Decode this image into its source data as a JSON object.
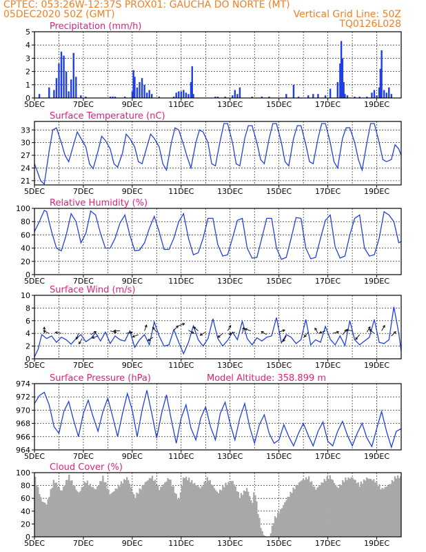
{
  "header": {
    "line1_left": "CPTEC:   053:26W-12:37S   PROX01: GAUCHA DO NORTE (MT)",
    "line2_left": "05DEC2020 50Z (GMT)",
    "line2_right": "Vertical Grid Line: 50Z",
    "line3_right": "TQ0126L028"
  },
  "colors": {
    "header": "#f08020",
    "title": "#e0207a",
    "series": "#1f3fe0",
    "cloud": "#a8a8a8",
    "grid": "#000000"
  },
  "x_axis": {
    "tick_labels": [
      "5DEC",
      "7DEC",
      "9DEC",
      "11DEC",
      "13DEC",
      "15DEC",
      "17DEC",
      "19DEC"
    ],
    "tick_days": [
      5,
      7,
      9,
      11,
      13,
      15,
      17,
      19
    ],
    "range_days": [
      5,
      20
    ]
  },
  "chart_data": [
    {
      "id": "precip",
      "type": "bar",
      "title": "Precipitation (mm/h)",
      "ylim": [
        0,
        5
      ],
      "yticks": [
        0,
        1,
        2,
        3,
        4,
        5
      ],
      "x": [
        5.2,
        5.6,
        5.8,
        5.9,
        6.0,
        6.1,
        6.2,
        6.3,
        6.4,
        6.5,
        6.6,
        6.7,
        6.9,
        7.1,
        8.1,
        8.2,
        8.3,
        8.7,
        9.0,
        9.05,
        9.1,
        9.2,
        9.3,
        9.4,
        9.5,
        9.6,
        9.7,
        9.8,
        10.1,
        10.7,
        10.8,
        10.9,
        11.0,
        11.1,
        11.2,
        11.3,
        11.4,
        11.45,
        11.5,
        12.4,
        12.5,
        12.8,
        13.1,
        13.2,
        13.3,
        13.4,
        13.9,
        14.3,
        14.6,
        15.3,
        15.6,
        15.8,
        16.2,
        16.4,
        16.6,
        16.9,
        17.1,
        17.4,
        17.5,
        17.55,
        17.6,
        17.65,
        17.7,
        17.8,
        18.1,
        18.3,
        18.6,
        18.8,
        18.9,
        19.0,
        19.1,
        19.15,
        19.2,
        19.3,
        19.4,
        19.5,
        19.6
      ],
      "values": [
        0.3,
        0.8,
        0.6,
        1.5,
        2.6,
        3.5,
        3.2,
        2.0,
        0.5,
        1.4,
        3.4,
        1.6,
        0.2,
        0.1,
        0.1,
        0.1,
        0.1,
        0.1,
        0.5,
        2.1,
        1.6,
        0.8,
        1.2,
        1.5,
        1.0,
        0.4,
        0.6,
        0.3,
        0.1,
        0.1,
        0.4,
        0.5,
        0.5,
        0.6,
        0.4,
        0.3,
        1.2,
        2.4,
        0.3,
        0.1,
        0.1,
        0.1,
        0.2,
        0.6,
        0.3,
        0.8,
        0.1,
        0.1,
        0.1,
        0.3,
        1.0,
        0.1,
        0.2,
        0.3,
        0.3,
        0.2,
        0.7,
        1.2,
        2.6,
        4.3,
        3.0,
        1.2,
        0.3,
        0.2,
        0.1,
        0.1,
        0.1,
        0.4,
        0.6,
        0.2,
        0.8,
        2.2,
        3.6,
        0.6,
        0.4,
        0.8,
        0.3
      ]
    },
    {
      "id": "temp",
      "type": "line",
      "title": "Surface Temperature (nC)",
      "ylim": [
        20,
        35
      ],
      "yticks": [
        21,
        24,
        27,
        30,
        33
      ],
      "x": [
        5.0,
        5.1,
        5.25,
        5.4,
        5.6,
        5.75,
        5.9,
        6.1,
        6.25,
        6.4,
        6.6,
        6.75,
        6.9,
        7.1,
        7.25,
        7.4,
        7.6,
        7.75,
        7.9,
        8.1,
        8.25,
        8.4,
        8.6,
        8.75,
        8.9,
        9.1,
        9.25,
        9.4,
        9.6,
        9.75,
        9.9,
        10.1,
        10.25,
        10.4,
        10.6,
        10.75,
        10.9,
        11.1,
        11.25,
        11.4,
        11.6,
        11.75,
        11.9,
        12.1,
        12.25,
        12.4,
        12.6,
        12.75,
        12.9,
        13.1,
        13.25,
        13.4,
        13.6,
        13.75,
        13.9,
        14.1,
        14.25,
        14.4,
        14.6,
        14.75,
        14.9,
        15.1,
        15.25,
        15.4,
        15.6,
        15.75,
        15.9,
        16.1,
        16.25,
        16.4,
        16.6,
        16.75,
        16.9,
        17.1,
        17.25,
        17.4,
        17.6,
        17.75,
        17.9,
        18.1,
        18.25,
        18.4,
        18.6,
        18.75,
        18.9,
        19.1,
        19.25,
        19.4,
        19.6,
        19.75,
        19.9,
        20.0
      ],
      "values": [
        25.0,
        23.5,
        21.0,
        20.2,
        28.0,
        33.0,
        33.5,
        30.0,
        27.0,
        25.5,
        29.5,
        32.5,
        31.0,
        29.0,
        25.0,
        23.8,
        28.0,
        31.5,
        30.5,
        28.5,
        25.0,
        24.2,
        27.5,
        32.0,
        31.0,
        29.0,
        25.5,
        25.0,
        29.0,
        32.0,
        31.0,
        29.0,
        25.0,
        23.5,
        30.0,
        33.5,
        33.0,
        29.5,
        26.5,
        24.0,
        30.0,
        33.0,
        32.5,
        30.0,
        25.0,
        24.5,
        30.5,
        34.5,
        34.5,
        30.0,
        25.0,
        24.5,
        31.0,
        34.0,
        34.0,
        30.0,
        26.0,
        25.0,
        31.0,
        34.5,
        34.5,
        30.0,
        25.5,
        24.5,
        31.0,
        34.0,
        34.0,
        29.5,
        25.5,
        25.0,
        31.0,
        34.5,
        34.5,
        30.0,
        25.5,
        24.0,
        31.0,
        33.5,
        33.5,
        30.0,
        26.0,
        23.5,
        30.0,
        34.5,
        34.5,
        30.0,
        26.0,
        25.5,
        26.0,
        29.5,
        28.5,
        27.0
      ]
    },
    {
      "id": "rh",
      "type": "line",
      "title": "Relative Humidity (%)",
      "ylim": [
        0,
        100
      ],
      "yticks": [
        0,
        20,
        40,
        60,
        80,
        100
      ],
      "x": [
        5.0,
        5.2,
        5.4,
        5.5,
        5.7,
        5.9,
        6.1,
        6.3,
        6.5,
        6.7,
        6.9,
        7.1,
        7.3,
        7.5,
        7.7,
        7.9,
        8.1,
        8.3,
        8.5,
        8.7,
        8.9,
        9.1,
        9.3,
        9.5,
        9.7,
        9.9,
        10.1,
        10.3,
        10.5,
        10.7,
        10.9,
        11.1,
        11.3,
        11.5,
        11.7,
        11.9,
        12.1,
        12.3,
        12.5,
        12.7,
        12.9,
        13.1,
        13.3,
        13.5,
        13.7,
        13.9,
        14.1,
        14.3,
        14.5,
        14.7,
        14.9,
        15.1,
        15.3,
        15.5,
        15.7,
        15.9,
        16.1,
        16.3,
        16.5,
        16.7,
        16.9,
        17.1,
        17.3,
        17.5,
        17.7,
        17.9,
        18.1,
        18.3,
        18.5,
        18.7,
        18.9,
        19.1,
        19.3,
        19.5,
        19.7,
        19.9,
        20.0
      ],
      "values": [
        65,
        80,
        97,
        95,
        65,
        40,
        36,
        60,
        92,
        80,
        48,
        62,
        96,
        90,
        62,
        40,
        40,
        55,
        78,
        90,
        60,
        36,
        37,
        48,
        70,
        88,
        65,
        38,
        38,
        55,
        80,
        92,
        55,
        30,
        33,
        55,
        85,
        85,
        45,
        28,
        30,
        55,
        82,
        85,
        40,
        25,
        26,
        55,
        85,
        85,
        40,
        23,
        26,
        55,
        86,
        85,
        40,
        24,
        26,
        55,
        82,
        90,
        42,
        25,
        28,
        60,
        85,
        90,
        40,
        28,
        30,
        55,
        95,
        90,
        80,
        48,
        50
      ]
    },
    {
      "id": "wind",
      "type": "line",
      "title": "Surface Wind (m/s)",
      "ylim": [
        0,
        10
      ],
      "yticks": [
        0,
        2,
        4,
        6,
        8,
        10
      ],
      "x": [
        5.0,
        5.15,
        5.3,
        5.5,
        5.7,
        5.9,
        6.1,
        6.3,
        6.5,
        6.7,
        6.9,
        7.1,
        7.3,
        7.5,
        7.7,
        7.9,
        8.1,
        8.3,
        8.5,
        8.7,
        8.9,
        9.1,
        9.3,
        9.5,
        9.7,
        9.9,
        10.1,
        10.3,
        10.5,
        10.7,
        10.9,
        11.1,
        11.3,
        11.5,
        11.7,
        11.9,
        12.1,
        12.3,
        12.5,
        12.7,
        12.9,
        13.1,
        13.3,
        13.5,
        13.7,
        13.9,
        14.1,
        14.3,
        14.5,
        14.7,
        14.9,
        15.1,
        15.3,
        15.5,
        15.7,
        15.9,
        16.1,
        16.3,
        16.5,
        16.7,
        16.9,
        17.1,
        17.3,
        17.5,
        17.7,
        17.9,
        18.1,
        18.3,
        18.5,
        18.7,
        18.9,
        19.1,
        19.3,
        19.5,
        19.7,
        19.9,
        20.0
      ],
      "values": [
        0.3,
        1.5,
        3.8,
        3.2,
        3.6,
        2.6,
        3.4,
        3.0,
        2.3,
        3.2,
        3.8,
        2.7,
        3.2,
        4.1,
        2.8,
        4.2,
        2.4,
        3.6,
        3.0,
        2.8,
        4.4,
        1.8,
        3.0,
        3.8,
        2.2,
        5.8,
        3.6,
        2.0,
        2.2,
        4.6,
        2.6,
        0.8,
        2.6,
        5.2,
        3.0,
        2.0,
        3.2,
        6.3,
        3.2,
        2.0,
        2.9,
        4.2,
        3.0,
        5.9,
        3.2,
        2.2,
        3.3,
        2.8,
        3.4,
        3.6,
        6.5,
        2.5,
        3.8,
        3.4,
        2.4,
        3.0,
        6.2,
        2.2,
        3.0,
        2.6,
        5.1,
        3.1,
        2.2,
        3.6,
        2.1,
        6.0,
        3.0,
        2.2,
        2.8,
        3.4,
        6.2,
        2.6,
        2.4,
        3.0,
        8.2,
        4.0,
        1.2
      ]
    },
    {
      "id": "pres",
      "type": "line",
      "title": "Surface Pressure (hPa)",
      "annotation": "Model Altitude: 358.899 m",
      "ylim": [
        964,
        974
      ],
      "yticks": [
        964,
        966,
        968,
        970,
        972,
        974
      ],
      "x": [
        5.0,
        5.2,
        5.4,
        5.6,
        5.8,
        6.0,
        6.2,
        6.4,
        6.6,
        6.8,
        7.0,
        7.2,
        7.4,
        7.6,
        7.8,
        8.0,
        8.2,
        8.4,
        8.6,
        8.8,
        9.0,
        9.2,
        9.4,
        9.6,
        9.8,
        10.0,
        10.2,
        10.4,
        10.6,
        10.8,
        11.0,
        11.2,
        11.4,
        11.6,
        11.8,
        12.0,
        12.2,
        12.4,
        12.6,
        12.8,
        13.0,
        13.2,
        13.4,
        13.6,
        13.8,
        14.0,
        14.2,
        14.4,
        14.6,
        14.8,
        15.0,
        15.2,
        15.4,
        15.6,
        15.8,
        16.0,
        16.2,
        16.4,
        16.6,
        16.8,
        17.0,
        17.2,
        17.4,
        17.6,
        17.8,
        18.0,
        18.2,
        18.4,
        18.6,
        18.8,
        19.0,
        19.2,
        19.4,
        19.6,
        19.8,
        20.0
      ],
      "values": [
        971.0,
        972.2,
        972.7,
        970.8,
        967.5,
        966.5,
        969.8,
        971.3,
        968.5,
        966.0,
        969.5,
        971.5,
        969.0,
        966.8,
        969.8,
        971.8,
        969.0,
        966.0,
        969.5,
        972.5,
        970.0,
        966.0,
        970.0,
        973.0,
        969.5,
        965.8,
        969.5,
        972.3,
        968.5,
        965.0,
        968.8,
        970.8,
        967.3,
        965.5,
        968.8,
        970.5,
        967.5,
        965.5,
        969.5,
        971.2,
        968.0,
        965.5,
        968.8,
        971.0,
        967.5,
        965.0,
        967.8,
        969.3,
        966.5,
        965.0,
        965.5,
        967.8,
        966.0,
        964.6,
        966.5,
        968.0,
        966.2,
        964.6,
        966.8,
        968.2,
        965.3,
        964.6,
        966.8,
        968.3,
        966.2,
        964.6,
        966.5,
        968.0,
        965.8,
        964.5,
        967.2,
        969.8,
        966.8,
        964.4,
        966.8,
        967.2
      ]
    },
    {
      "id": "cloud",
      "type": "area",
      "title": "Cloud Cover (%)",
      "ylim": [
        0,
        100
      ],
      "yticks": [
        0,
        20,
        40,
        60,
        80,
        100
      ],
      "x": [
        5.0,
        5.3,
        5.5,
        5.8,
        6.1,
        6.4,
        6.8,
        7.1,
        7.5,
        7.8,
        8.1,
        8.5,
        8.8,
        9.1,
        9.5,
        9.8,
        10.1,
        10.5,
        10.9,
        11.1,
        11.5,
        11.8,
        12.1,
        12.5,
        12.8,
        13.1,
        13.4,
        13.7,
        13.9,
        14.0,
        14.15,
        14.3,
        14.45,
        14.6,
        14.8,
        15.1,
        15.3,
        15.6,
        15.9,
        16.2,
        16.5,
        16.8,
        17.1,
        17.4,
        17.7,
        18.0,
        18.3,
        18.6,
        18.9,
        19.2,
        19.5,
        19.8,
        20.0
      ],
      "values": [
        97,
        60,
        55,
        92,
        75,
        98,
        72,
        90,
        78,
        96,
        70,
        85,
        97,
        65,
        88,
        98,
        78,
        96,
        60,
        98,
        88,
        80,
        95,
        72,
        85,
        92,
        66,
        80,
        55,
        78,
        40,
        12,
        4,
        2,
        30,
        48,
        62,
        78,
        92,
        96,
        78,
        90,
        98,
        80,
        93,
        97,
        84,
        96,
        92,
        78,
        85,
        97,
        97
      ]
    }
  ],
  "wind_arrows": [
    {
      "x": 5.4,
      "y": 4.0,
      "deg": 90
    },
    {
      "x": 5.6,
      "y": 4.0,
      "deg": 155
    },
    {
      "x": 6.1,
      "y": 4.0,
      "deg": 170
    },
    {
      "x": 6.8,
      "y": 4.0,
      "deg": 250
    },
    {
      "x": 6.95,
      "y": 3.2,
      "deg": 240
    },
    {
      "x": 7.3,
      "y": 3.8,
      "deg": 30
    },
    {
      "x": 7.6,
      "y": 3.6,
      "deg": 200
    },
    {
      "x": 8.1,
      "y": 4.4,
      "deg": 345
    },
    {
      "x": 8.5,
      "y": 4.4,
      "deg": 180
    },
    {
      "x": 8.75,
      "y": 4.0,
      "deg": 10
    },
    {
      "x": 9.25,
      "y": 3.8,
      "deg": 200
    },
    {
      "x": 9.5,
      "y": 4.4,
      "deg": 70
    },
    {
      "x": 9.85,
      "y": 3.4,
      "deg": 215
    },
    {
      "x": 10.0,
      "y": 4.2,
      "deg": 130
    },
    {
      "x": 10.7,
      "y": 4.5,
      "deg": 45
    },
    {
      "x": 10.9,
      "y": 5.2,
      "deg": 20
    },
    {
      "x": 11.3,
      "y": 4.5,
      "deg": 330
    },
    {
      "x": 11.7,
      "y": 4.4,
      "deg": 140
    },
    {
      "x": 12.0,
      "y": 4.2,
      "deg": 210
    },
    {
      "x": 12.7,
      "y": 4.0,
      "deg": 220
    },
    {
      "x": 12.9,
      "y": 4.4,
      "deg": 60
    },
    {
      "x": 13.2,
      "y": 4.2,
      "deg": 200
    },
    {
      "x": 13.5,
      "y": 4.0,
      "deg": 75
    },
    {
      "x": 13.85,
      "y": 4.4,
      "deg": 160
    },
    {
      "x": 14.5,
      "y": 3.8,
      "deg": 150
    },
    {
      "x": 15.0,
      "y": 4.2,
      "deg": 20
    },
    {
      "x": 15.3,
      "y": 3.6,
      "deg": 240
    },
    {
      "x": 16.2,
      "y": 4.2,
      "deg": 230
    },
    {
      "x": 16.6,
      "y": 4.0,
      "deg": 120
    },
    {
      "x": 16.9,
      "y": 4.4,
      "deg": 200
    },
    {
      "x": 17.2,
      "y": 4.0,
      "deg": 15
    },
    {
      "x": 17.6,
      "y": 3.8,
      "deg": 50
    },
    {
      "x": 18.0,
      "y": 4.4,
      "deg": 170
    },
    {
      "x": 18.3,
      "y": 3.8,
      "deg": 230
    },
    {
      "x": 18.6,
      "y": 4.2,
      "deg": 60
    },
    {
      "x": 18.9,
      "y": 4.0,
      "deg": 140
    },
    {
      "x": 19.2,
      "y": 4.4,
      "deg": 60
    },
    {
      "x": 19.6,
      "y": 3.6,
      "deg": 45
    }
  ]
}
